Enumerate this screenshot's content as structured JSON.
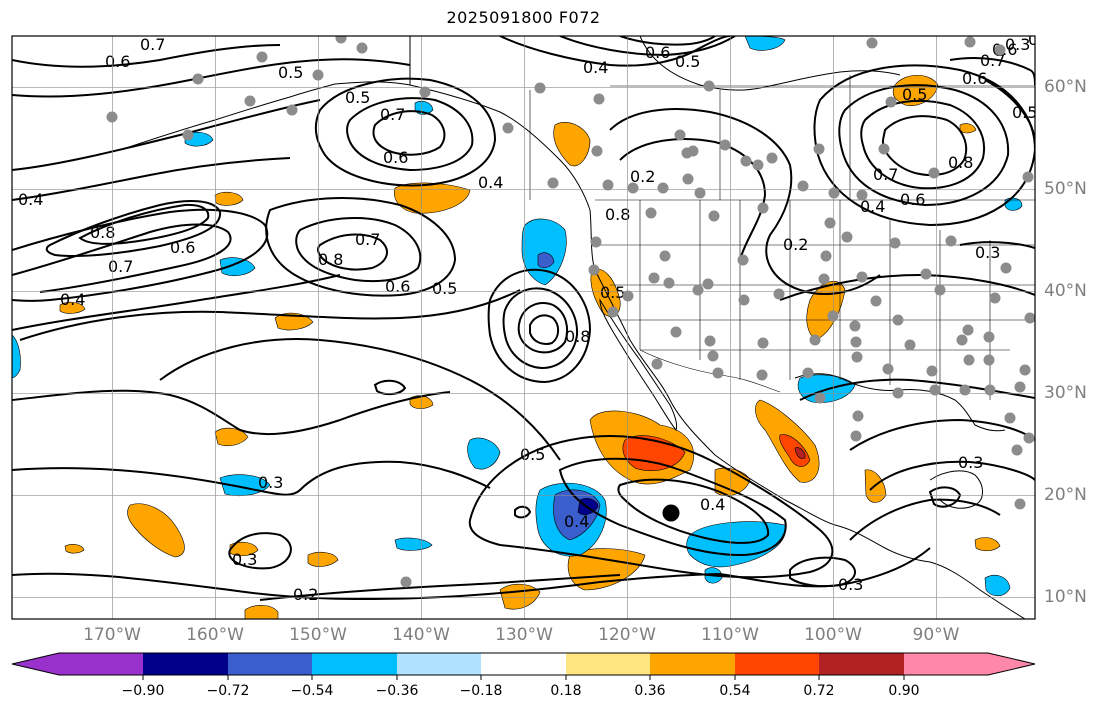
{
  "title": "2025091800 F072",
  "map": {
    "lon_range": [
      -180,
      -80
    ],
    "lat_range": [
      8,
      65
    ],
    "longitude_ticks": [
      "170°W",
      "160°W",
      "150°W",
      "140°W",
      "130°W",
      "120°W",
      "110°W",
      "100°W",
      "90°W"
    ],
    "latitude_ticks": [
      "60°N",
      "50°N",
      "40°N",
      "30°N",
      "20°N",
      "10°N"
    ],
    "gridlines": true,
    "contour_color": "#000000",
    "contour_labels": [
      "0.7",
      "0.6",
      "0.5",
      "0.6",
      "0.5",
      "0.4",
      "0.7",
      "0.6",
      "0.6",
      "0.4",
      "0.5",
      "0.7",
      "0.8",
      "0.5",
      "0.4",
      "0.8",
      "0.7",
      "0.6",
      "0.4",
      "0.8",
      "0.6",
      "0.5",
      "0.6",
      "0.7",
      "0.2",
      "0.5",
      "0.2",
      "0.3",
      "0.3",
      "0.3",
      "0.3",
      "0.4",
      "0.4",
      "0.3",
      "0.2",
      "0.3",
      "0.8",
      "0.5",
      "0.5",
      "0.4",
      "0.8",
      "0.7",
      "0.6",
      "0.3"
    ],
    "highlight_marker": "black-dot",
    "station_marker": "gray-dot"
  },
  "colorbar": {
    "ticks": [
      "−0.90",
      "−0.72",
      "−0.54",
      "−0.36",
      "−0.18",
      "0.18",
      "0.36",
      "0.54",
      "0.72",
      "0.90"
    ],
    "colors": [
      "#9932CC",
      "#00008B",
      "#3A5FCD",
      "#00BFFF",
      "#B0E2FF",
      "#FFFFFF",
      "#FFE680",
      "#FFA500",
      "#FF4500",
      "#B22222",
      "#FF88AA"
    ]
  }
}
